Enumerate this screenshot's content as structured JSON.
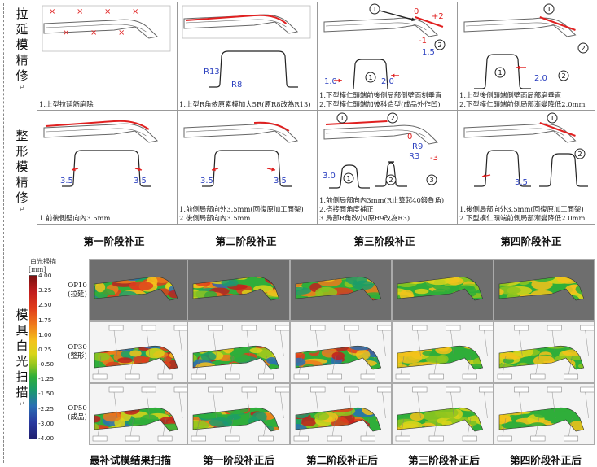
{
  "side_labels": {
    "stretch": "拉延模精修",
    "shape": "整形模精修",
    "scan": "模具白光扫描",
    "mark": "↵"
  },
  "grid_top": {
    "row1": [
      {
        "caption": [
          "1.上型拉延筋磨除"
        ],
        "dims": []
      },
      {
        "caption": [
          "1.上型R角依原素模加大5R(原R8改為R13)"
        ],
        "dims": [
          "R13",
          "R8"
        ]
      },
      {
        "caption": [
          "1.下型模仁頭端前後側局部側壁面刻垂直",
          "2.下型模仁頭端加彼科造型(成品外作凹)"
        ],
        "dims": [
          "0",
          "+2",
          "-1",
          "1.0",
          "2.0",
          "1.5"
        ]
      },
      {
        "caption": [
          "1.上型後側頭端側壁面局部磨垂直",
          "2.下型模仁頭端前側局部漸變降低2.0mm"
        ],
        "dims": [
          "2.0"
        ]
      }
    ],
    "row2": [
      {
        "caption": [
          "1.前後側壁向內3.5mm"
        ],
        "dims": [
          "3.5",
          "3.5"
        ]
      },
      {
        "caption": [
          "1.前側局部向外3.5mm(回復原加工面架)",
          "2.後側局部向內3.5mm"
        ],
        "dims": [
          "3.5",
          "3.5"
        ]
      },
      {
        "caption": [
          "1.前側局部向內3mm(R止算起40鍛負角)",
          "2.搭接面角度補正",
          "3.局部R角改小(原R9改為R3)"
        ],
        "dims": [
          "3.0",
          "3.0",
          "R9",
          "R3",
          "0",
          "-3"
        ]
      },
      {
        "caption": [
          "1.後側局部向外3.5mm(回復原加工面架)",
          "2.下型模仁頭端前側局部漸變降低2.0mm"
        ],
        "dims": [
          "3.5"
        ]
      }
    ]
  },
  "phases": [
    "第一阶段补正",
    "第二阶段补正",
    "第三阶段补正",
    "第四阶段补正"
  ],
  "legend": {
    "title": "白光掃描",
    "unit": "[mm]",
    "ticks": [
      "4.00",
      "3.25",
      "2.50",
      "1.75",
      "1.00",
      "0.25",
      "-0.50",
      "-1.25",
      "-1.50",
      "-2.25",
      "-3.00",
      "-4.00"
    ]
  },
  "ops": [
    {
      "code": "OP10",
      "name": "(拉延)"
    },
    {
      "code": "OP30",
      "name": "(整形)"
    },
    {
      "code": "OP50",
      "name": "(成品)"
    }
  ],
  "bottom_labels": [
    "最补试模结果扫描",
    "第一阶段补正后",
    "第二阶段补正后",
    "第三阶段补正后",
    "第四阶段补正后"
  ],
  "colors": {
    "annotation": "#e02020",
    "dimension": "#2a3fbf",
    "part_outline": "#666666"
  }
}
